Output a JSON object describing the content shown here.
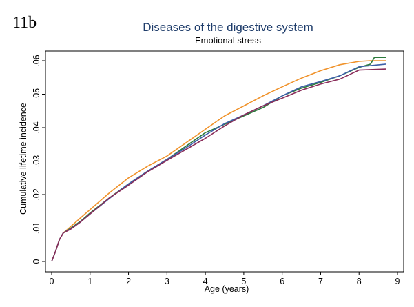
{
  "panel_label": "11b",
  "chart_data": {
    "type": "line",
    "title": "Diseases of the digestive system",
    "subtitle": "Emotional stress",
    "xlabel": "Age (years)",
    "ylabel": "Cumulative lifetime incidence",
    "xlim": [
      0,
      9
    ],
    "ylim": [
      0,
      0.062
    ],
    "x_ticks": [
      0,
      1,
      2,
      3,
      4,
      5,
      6,
      7,
      8,
      9
    ],
    "x_tick_labels": [
      "0",
      "1",
      "2",
      "3",
      "4",
      "5",
      "6",
      "7",
      "8",
      "9"
    ],
    "y_ticks": [
      0,
      0.01,
      0.02,
      0.03,
      0.04,
      0.05,
      0.06
    ],
    "y_tick_labels": [
      "0",
      ".01",
      ".02",
      ".03",
      ".04",
      ".05",
      ".06"
    ],
    "grid": false,
    "legend": "none",
    "series": [
      {
        "color": "#f0922a",
        "x": [
          0,
          0.1,
          0.2,
          0.3,
          0.5,
          0.75,
          1,
          1.5,
          2,
          2.5,
          3,
          3.5,
          4,
          4.5,
          5,
          5.5,
          6,
          6.5,
          7,
          7.5,
          8,
          8.3,
          8.7
        ],
        "y": [
          0,
          0.003,
          0.0065,
          0.0085,
          0.0105,
          0.013,
          0.0155,
          0.0205,
          0.025,
          0.0285,
          0.0315,
          0.0355,
          0.0395,
          0.0435,
          0.0465,
          0.0495,
          0.0522,
          0.0548,
          0.057,
          0.0588,
          0.0598,
          0.06,
          0.06
        ]
      },
      {
        "color": "#2b7a3b",
        "x": [
          0,
          0.1,
          0.2,
          0.3,
          0.5,
          0.75,
          1,
          1.5,
          2,
          2.5,
          3,
          3.5,
          4,
          4.5,
          5,
          5.5,
          6,
          6.5,
          7,
          7.5,
          8,
          8.3,
          8.4,
          8.7
        ],
        "y": [
          0,
          0.003,
          0.0065,
          0.0085,
          0.01,
          0.012,
          0.0145,
          0.019,
          0.0232,
          0.027,
          0.0305,
          0.0345,
          0.0385,
          0.041,
          0.0435,
          0.046,
          0.0495,
          0.0518,
          0.0535,
          0.0555,
          0.058,
          0.059,
          0.061,
          0.061
        ]
      },
      {
        "color": "#3d5fa8",
        "x": [
          0,
          0.1,
          0.2,
          0.3,
          0.5,
          0.75,
          1,
          1.5,
          2,
          2.5,
          3,
          3.5,
          4,
          4.5,
          5,
          5.5,
          6,
          6.5,
          7,
          7.5,
          8,
          8.7
        ],
        "y": [
          0,
          0.003,
          0.0065,
          0.0085,
          0.0098,
          0.0118,
          0.0142,
          0.0188,
          0.0232,
          0.027,
          0.0305,
          0.034,
          0.0378,
          0.0412,
          0.0438,
          0.0465,
          0.0495,
          0.0522,
          0.0538,
          0.0555,
          0.0582,
          0.059
        ]
      },
      {
        "color": "#8a2d5a",
        "x": [
          0,
          0.1,
          0.2,
          0.3,
          0.5,
          0.75,
          1,
          1.5,
          2,
          2.5,
          3,
          3.5,
          4,
          4.5,
          5,
          5.5,
          6,
          6.5,
          7,
          7.5,
          8,
          8.7
        ],
        "y": [
          0,
          0.003,
          0.0065,
          0.0085,
          0.0097,
          0.0118,
          0.0142,
          0.019,
          0.0228,
          0.0268,
          0.0302,
          0.0335,
          0.0368,
          0.0405,
          0.0438,
          0.0465,
          0.0488,
          0.0512,
          0.053,
          0.0545,
          0.0572,
          0.0575
        ]
      }
    ]
  }
}
